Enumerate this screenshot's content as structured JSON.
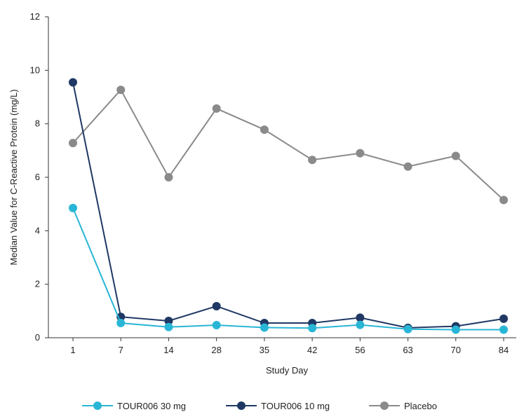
{
  "chart_data": {
    "type": "line",
    "categories": [
      "1",
      "7",
      "14",
      "28",
      "35",
      "42",
      "56",
      "63",
      "70",
      "84"
    ],
    "xlabel": "Study Day",
    "ylabel": "Median Value for C-Reactive Protein (mg/L)",
    "ylim": [
      0,
      12
    ],
    "yticks": [
      "0",
      "2",
      "4",
      "6",
      "8",
      "10",
      "12"
    ],
    "grid": false,
    "legend_position": "bottom",
    "series": [
      {
        "name": "TOUR006 30 mg",
        "color": "#29b6d6",
        "values": [
          4.85,
          0.55,
          0.4,
          0.47,
          0.38,
          0.36,
          0.48,
          0.32,
          0.3,
          0.3
        ]
      },
      {
        "name": "TOUR006 10 mg",
        "color": "#1f3864",
        "values": [
          9.55,
          0.78,
          0.63,
          1.18,
          0.55,
          0.55,
          0.75,
          0.37,
          0.43,
          0.71
        ]
      },
      {
        "name": "Placebo",
        "color": "#8a8a8a",
        "values": [
          7.28,
          9.27,
          6.0,
          8.57,
          7.78,
          6.65,
          6.9,
          6.4,
          6.8,
          5.15
        ]
      }
    ]
  }
}
